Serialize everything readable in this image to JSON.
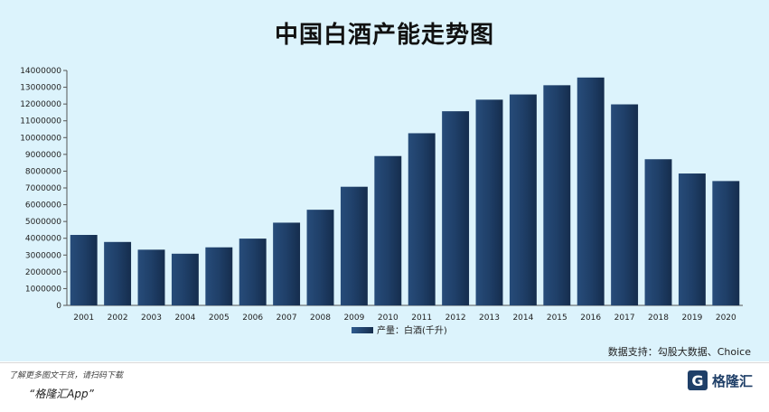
{
  "page": {
    "source": "数据支持：勾股大数据、Choice",
    "footer_note": "了解更多图文干货，请扫码下载",
    "footer_app": "“格隆汇App”",
    "logo_mark": "G",
    "logo_text": "格隆汇"
  },
  "colors": {
    "bar": "#1f3f68",
    "background": "#dcf3fc"
  },
  "chart_data": {
    "type": "bar",
    "title": "中国白酒产能走势图",
    "categories": [
      "2001",
      "2002",
      "2003",
      "2004",
      "2005",
      "2006",
      "2007",
      "2008",
      "2009",
      "2010",
      "2011",
      "2012",
      "2013",
      "2014",
      "2015",
      "2016",
      "2017",
      "2018",
      "2019",
      "2020"
    ],
    "series": [
      {
        "name": "产量：白酒(千升)",
        "values": [
          4200000,
          3780000,
          3320000,
          3080000,
          3460000,
          3980000,
          4930000,
          5700000,
          7070000,
          8900000,
          10260000,
          11570000,
          12260000,
          12570000,
          13120000,
          13580000,
          11980000,
          8710000,
          7860000,
          7410000
        ]
      }
    ],
    "ylim": [
      0,
      14000000
    ],
    "yticks": [
      0,
      1000000,
      2000000,
      3000000,
      4000000,
      5000000,
      6000000,
      7000000,
      8000000,
      9000000,
      10000000,
      11000000,
      12000000,
      13000000,
      14000000
    ],
    "legend": "bottom-center",
    "grid": false
  }
}
